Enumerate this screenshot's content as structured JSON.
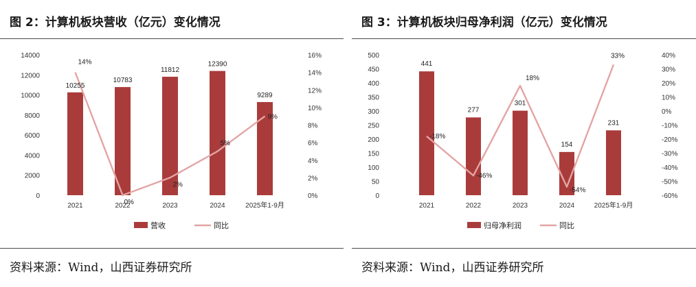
{
  "colors": {
    "bar": "#a93c3b",
    "line": "#e3a4a4"
  },
  "chart_data": [
    {
      "type": "bar+line",
      "title": "图 2：计算机板块营收（亿元）变化情况",
      "source": "资料来源：Wind，山西证券研究所",
      "categories": [
        "2021",
        "2022",
        "2023",
        "2024",
        "2025年1-9月"
      ],
      "series": [
        {
          "name": "营收",
          "kind": "bar",
          "axis": "left",
          "values": [
            10255,
            10783,
            11812,
            12390,
            9289
          ],
          "labels": [
            "10255",
            "10783",
            "11812",
            "12390",
            "9289"
          ]
        },
        {
          "name": "同比",
          "kind": "line",
          "axis": "right",
          "values": [
            14,
            0,
            2,
            5,
            9
          ],
          "labels": [
            "14%",
            "0%",
            "2%",
            "5%",
            "9%"
          ]
        }
      ],
      "ylim_left": [
        0,
        14000
      ],
      "yticks_left": [
        0,
        2000,
        4000,
        6000,
        8000,
        10000,
        12000,
        14000
      ],
      "yticklabels_left": [
        "0",
        "2000",
        "4000",
        "6000",
        "8000",
        "10000",
        "12000",
        "14000"
      ],
      "ylim_right": [
        0,
        16
      ],
      "yticks_right": [
        0,
        2,
        4,
        6,
        8,
        10,
        12,
        14,
        16
      ],
      "yticklabels_right": [
        "0%",
        "2%",
        "4%",
        "6%",
        "8%",
        "10%",
        "12%",
        "14%",
        "16%"
      ],
      "legend": [
        "营收",
        "同比"
      ]
    },
    {
      "type": "bar+line",
      "title": "图 3：计算机板块归母净利润（亿元）变化情况",
      "source": "资料来源：Wind，山西证券研究所",
      "categories": [
        "2021",
        "2022",
        "2023",
        "2024",
        "2025年1-9月"
      ],
      "series": [
        {
          "name": "归母净利润",
          "kind": "bar",
          "axis": "left",
          "values": [
            441,
            277,
            301,
            154,
            231
          ],
          "labels": [
            "441",
            "277",
            "301",
            "154",
            "231"
          ]
        },
        {
          "name": "同比",
          "kind": "line",
          "axis": "right",
          "values": [
            -18,
            -46,
            18,
            -54,
            33
          ],
          "labels": [
            "-18%",
            "-46%",
            "18%",
            "-54%",
            "33%"
          ]
        }
      ],
      "ylim_left": [
        0,
        500
      ],
      "yticks_left": [
        0,
        50,
        100,
        150,
        200,
        250,
        300,
        350,
        400,
        450,
        500
      ],
      "yticklabels_left": [
        "0",
        "50",
        "100",
        "150",
        "200",
        "250",
        "300",
        "350",
        "400",
        "450",
        "500"
      ],
      "ylim_right": [
        -60,
        40
      ],
      "yticks_right": [
        -60,
        -50,
        -40,
        -30,
        -20,
        -10,
        0,
        10,
        20,
        30,
        40
      ],
      "yticklabels_right": [
        "-60%",
        "-50%",
        "-40%",
        "-30%",
        "-20%",
        "-10%",
        "0%",
        "10%",
        "20%",
        "30%",
        "40%"
      ],
      "legend": [
        "归母净利润",
        "同比"
      ]
    }
  ]
}
